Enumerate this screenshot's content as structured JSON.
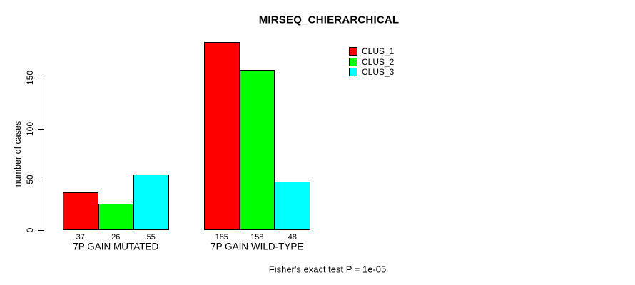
{
  "chart_data": {
    "type": "bar",
    "title": "MIRSEQ_CHIERARCHICAL",
    "ylabel": "number of cases",
    "xlabel": "",
    "categories": [
      "7P GAIN MUTATED",
      "7P GAIN WILD-TYPE"
    ],
    "series": [
      {
        "name": "CLUS_1",
        "color": "#FF0000",
        "values": [
          37,
          185
        ]
      },
      {
        "name": "CLUS_2",
        "color": "#00FF00",
        "values": [
          26,
          158
        ]
      },
      {
        "name": "CLUS_3",
        "color": "#00FFFF",
        "values": [
          55,
          48
        ]
      }
    ],
    "yticks": [
      0,
      50,
      100,
      150
    ],
    "ylim": [
      0,
      150
    ],
    "grid": false,
    "bar_value_labels_visible": true,
    "legend_position": "top-right",
    "footnote": "Fisher's exact test P = 1e-05",
    "axis_color": "#000000",
    "bar_border_color": "#000000",
    "background_color": "#FFFFFF"
  }
}
